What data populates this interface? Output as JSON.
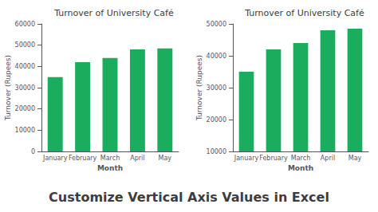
{
  "title": "Customize Vertical Axis Values in Excel",
  "chart_data": [
    {
      "type": "bar",
      "title": "Turnover of University Café",
      "xlabel": "Month",
      "ylabel": "Turnover (Rupees)",
      "categories": [
        "January",
        "February",
        "March",
        "April",
        "May"
      ],
      "values": [
        35000,
        42000,
        44000,
        48000,
        48500
      ],
      "color": "#1AAD5E",
      "ylim": [
        0,
        60000
      ],
      "yticks": [
        0,
        10000,
        20000,
        30000,
        40000,
        50000,
        60000
      ],
      "grid": false
    },
    {
      "type": "bar",
      "title": "Turnover of University Café",
      "xlabel": "Month",
      "ylabel": "Turnover (Rupees)",
      "categories": [
        "January",
        "February",
        "March",
        "April",
        "May"
      ],
      "values": [
        35000,
        42000,
        44000,
        48000,
        48500
      ],
      "color": "#1AAD5E",
      "ylim": [
        10000,
        50000
      ],
      "yticks": [
        10000,
        20000,
        30000,
        40000,
        50000
      ],
      "grid": false
    }
  ]
}
